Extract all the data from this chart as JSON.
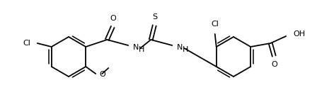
{
  "background": "#ffffff",
  "line_color": "#000000",
  "lw": 1.3,
  "fs": 8.0,
  "figsize": [
    4.48,
    1.58
  ],
  "dpi": 100,
  "xlim": [
    0,
    448
  ],
  "ylim": [
    0,
    158
  ]
}
